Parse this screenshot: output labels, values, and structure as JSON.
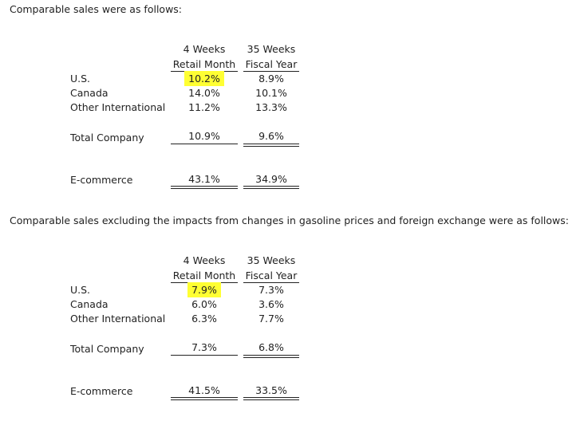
{
  "section1": {
    "intro": "Comparable sales were as follows:",
    "col1_line1": "4 Weeks",
    "col1_line2": "Retail Month",
    "col2_line1": "35 Weeks",
    "col2_line2": "Fiscal Year",
    "rows": [
      {
        "label": "U.S.",
        "month": "10.2%",
        "year": "8.9%"
      },
      {
        "label": "Canada",
        "month": "14.0%",
        "year": "10.1%"
      },
      {
        "label": "Other International",
        "month": "11.2%",
        "year": "13.3%"
      },
      {
        "label": "Total Company",
        "month": "10.9%",
        "year": "9.6%"
      },
      {
        "label": "E-commerce",
        "month": "43.1%",
        "year": "34.9%"
      }
    ]
  },
  "section2": {
    "intro": "Comparable sales excluding the impacts from changes in gasoline prices and foreign exchange were as follows:",
    "col1_line1": "4 Weeks",
    "col1_line2": "Retail Month",
    "col2_line1": "35 Weeks",
    "col2_line2": "Fiscal Year",
    "rows": [
      {
        "label": "U.S.",
        "month": "7.9%",
        "year": "7.3%"
      },
      {
        "label": "Canada",
        "month": "6.0%",
        "year": "3.6%"
      },
      {
        "label": "Other International",
        "month": "6.3%",
        "year": "7.7%"
      },
      {
        "label": "Total Company",
        "month": "7.3%",
        "year": "6.8%"
      },
      {
        "label": "E-commerce",
        "month": "41.5%",
        "year": "33.5%"
      }
    ]
  },
  "colors": {
    "highlight": "#ffff33",
    "text": "#222222"
  }
}
